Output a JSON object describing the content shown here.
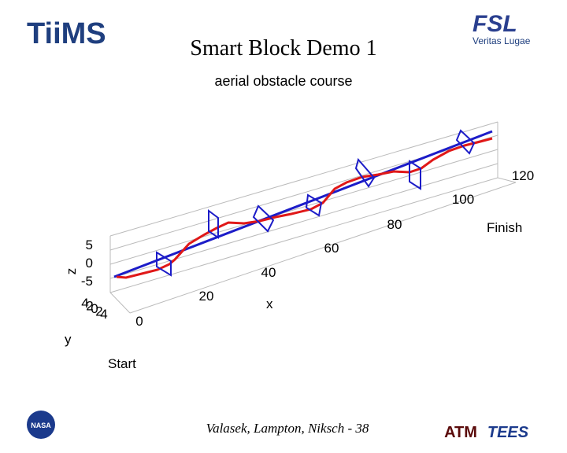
{
  "header": {
    "title": "Smart Block Demo 1",
    "left_logo": "TiiMS",
    "right_logo": "FSL",
    "right_tagline": "Veritas Lugae"
  },
  "plot": {
    "subtitle": "aerial obstacle course",
    "x_label": "x",
    "y_label": "y",
    "z_label": "z",
    "x_ticks": [
      "0",
      "20",
      "40",
      "60",
      "80",
      "100",
      "120"
    ],
    "y_ticks": [
      "4",
      "2",
      "0",
      "2",
      "4"
    ],
    "z_ticks": [
      "5",
      "0",
      "-5"
    ],
    "start": "Start",
    "finish": "Finish"
  },
  "footer": {
    "authors": "Valasek, Lampton, Niksch - 38",
    "logos": [
      "NASA",
      "ATM",
      "TEES"
    ]
  }
}
